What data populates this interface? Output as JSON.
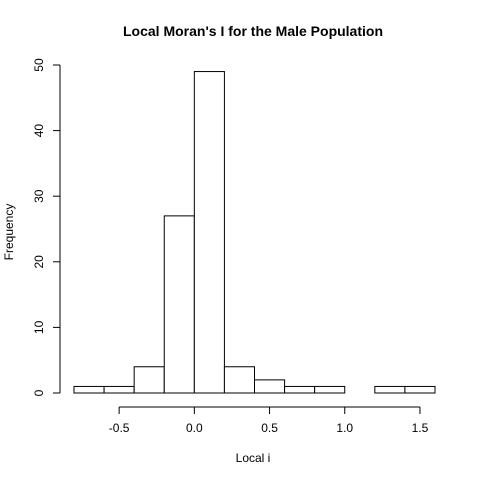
{
  "chart_data": {
    "type": "bar",
    "title": "Local Moran's I for the Male Population",
    "xlabel": "Local i",
    "ylabel": "Frequency",
    "bins": [
      {
        "x0": -0.8,
        "x1": -0.6,
        "count": 1
      },
      {
        "x0": -0.6,
        "x1": -0.4,
        "count": 1
      },
      {
        "x0": -0.4,
        "x1": -0.2,
        "count": 4
      },
      {
        "x0": -0.2,
        "x1": 0.0,
        "count": 27
      },
      {
        "x0": 0.0,
        "x1": 0.2,
        "count": 49
      },
      {
        "x0": 0.2,
        "x1": 0.4,
        "count": 4
      },
      {
        "x0": 0.4,
        "x1": 0.6,
        "count": 2
      },
      {
        "x0": 0.6,
        "x1": 0.8,
        "count": 1
      },
      {
        "x0": 0.8,
        "x1": 1.0,
        "count": 1
      },
      {
        "x0": 1.0,
        "x1": 1.2,
        "count": 0
      },
      {
        "x0": 1.2,
        "x1": 1.4,
        "count": 1
      },
      {
        "x0": 1.4,
        "x1": 1.6,
        "count": 1
      }
    ],
    "x_ticks": [
      -0.5,
      0.0,
      0.5,
      1.0,
      1.5
    ],
    "x_tick_labels": [
      "-0.5",
      "0.0",
      "0.5",
      "1.0",
      "1.5"
    ],
    "y_ticks": [
      0,
      10,
      20,
      30,
      40,
      50
    ],
    "y_tick_labels": [
      "0",
      "10",
      "20",
      "30",
      "40",
      "50"
    ],
    "xlim": [
      -0.8,
      1.6
    ],
    "ylim": [
      0,
      50
    ],
    "grid": false,
    "colors": {
      "bar_fill": "#ffffff",
      "bar_stroke": "#000000"
    }
  }
}
